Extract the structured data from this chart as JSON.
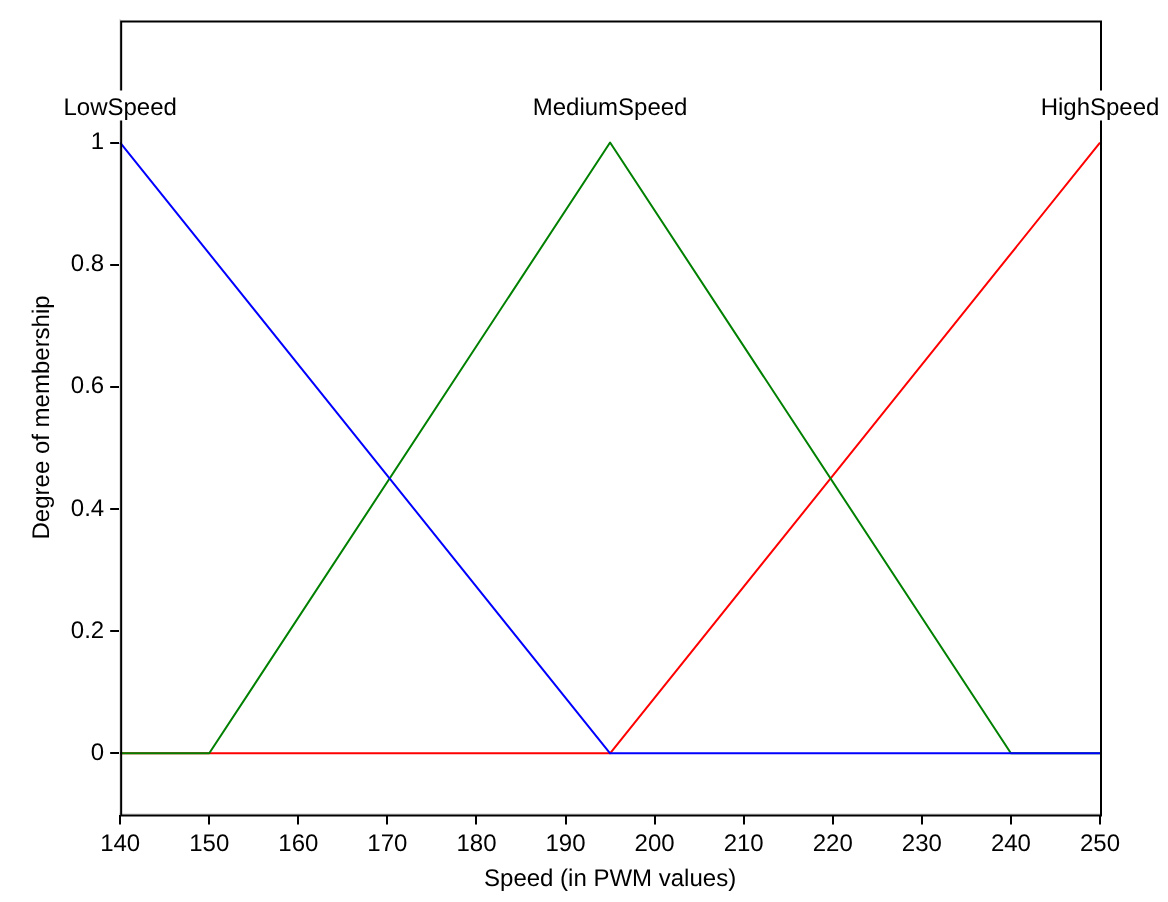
{
  "chart_data": {
    "type": "line",
    "xlabel": "Speed (in PWM values)",
    "ylabel": "Degree of membership",
    "xlim": [
      140,
      250
    ],
    "xticks": [
      140,
      150,
      160,
      170,
      180,
      190,
      200,
      210,
      220,
      230,
      240,
      250
    ],
    "ylim": [
      -0.1,
      1.2
    ],
    "yticks": [
      0,
      0.2,
      0.4,
      0.6,
      0.8,
      1
    ],
    "legend": false,
    "marker": "none",
    "line_style": "solid",
    "series": [
      {
        "name": "LowSpeed",
        "color": "#0000ff",
        "x": [
          140,
          195,
          250
        ],
        "values": [
          1,
          0,
          0
        ]
      },
      {
        "name": "MediumSpeed",
        "color": "#008000",
        "x": [
          140,
          150,
          195,
          240,
          250
        ],
        "values": [
          0,
          0,
          1,
          0,
          0
        ]
      },
      {
        "name": "HighSpeed",
        "color": "#ff0000",
        "x": [
          140,
          195,
          250
        ],
        "values": [
          0,
          0,
          1
        ]
      }
    ]
  }
}
